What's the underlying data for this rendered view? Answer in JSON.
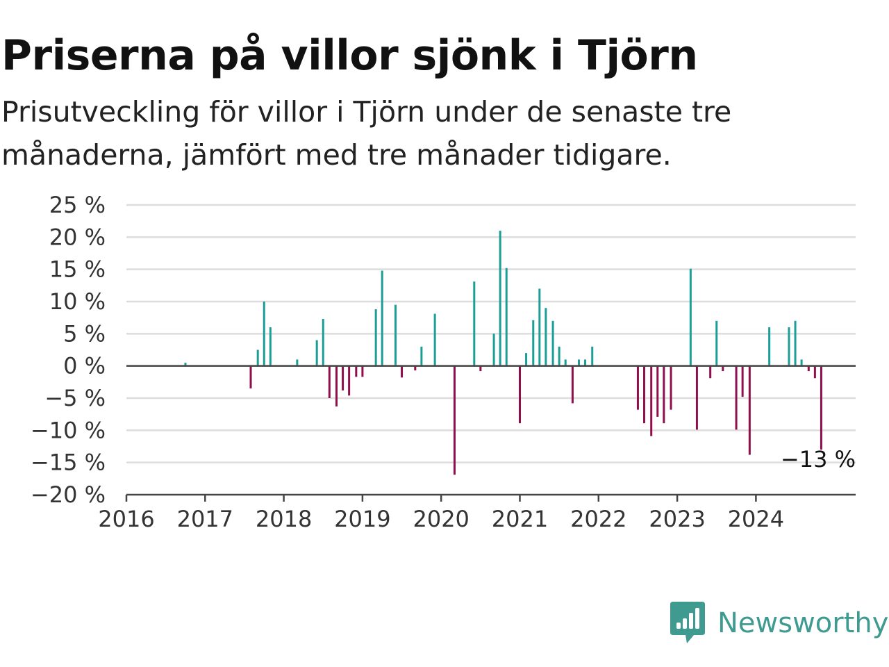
{
  "title": "Priserna på villor sjönk i Tjörn",
  "subtitle": "Prisutveckling för villor i Tjörn under de senaste tre månaderna, jämfört med tre månader tidigare.",
  "brand": {
    "name": "Newsworthy",
    "icon": "newsworthy-logo-icon",
    "color": "#3f9a8f"
  },
  "colors": {
    "positive": "#1a9e96",
    "negative": "#8e0f4b",
    "grid": "#dddddd",
    "zero_line": "#444444"
  },
  "chart_data": {
    "type": "bar",
    "unit": "%",
    "yticks": [
      "25 %",
      "20 %",
      "15 %",
      "10 %",
      "5 %",
      "0 %",
      "−5 %",
      "−10 %",
      "−15 %",
      "−20 %"
    ],
    "ytick_values": [
      25,
      20,
      15,
      10,
      5,
      0,
      -5,
      -10,
      -15,
      -20
    ],
    "xticks": [
      "2016",
      "2017",
      "2018",
      "2019",
      "2020",
      "2021",
      "2022",
      "2023",
      "2024"
    ],
    "xtick_values": [
      2016,
      2017,
      2018,
      2019,
      2020,
      2021,
      2022,
      2023,
      2024
    ],
    "ylim": [
      -20,
      25
    ],
    "xlim": [
      2016,
      2025.3
    ],
    "grid": true,
    "last_value_label": "−13 %",
    "points": [
      {
        "x": 2016.75,
        "y": 0.5
      },
      {
        "x": 2017.58,
        "y": -3.5
      },
      {
        "x": 2017.67,
        "y": 2.5
      },
      {
        "x": 2017.75,
        "y": 10
      },
      {
        "x": 2017.83,
        "y": 6
      },
      {
        "x": 2018.17,
        "y": 1
      },
      {
        "x": 2018.42,
        "y": 4
      },
      {
        "x": 2018.5,
        "y": 7.3
      },
      {
        "x": 2018.58,
        "y": -5
      },
      {
        "x": 2018.67,
        "y": -6.3
      },
      {
        "x": 2018.75,
        "y": -3.8
      },
      {
        "x": 2018.83,
        "y": -4.6
      },
      {
        "x": 2018.92,
        "y": -1.7
      },
      {
        "x": 2019.0,
        "y": -1.7
      },
      {
        "x": 2019.17,
        "y": 8.8
      },
      {
        "x": 2019.25,
        "y": 14.8
      },
      {
        "x": 2019.42,
        "y": 9.5
      },
      {
        "x": 2019.5,
        "y": -1.8
      },
      {
        "x": 2019.67,
        "y": -0.7
      },
      {
        "x": 2019.75,
        "y": 3
      },
      {
        "x": 2019.92,
        "y": 8.1
      },
      {
        "x": 2020.17,
        "y": -16.9
      },
      {
        "x": 2020.42,
        "y": 13.1
      },
      {
        "x": 2020.5,
        "y": -0.8
      },
      {
        "x": 2020.67,
        "y": 5
      },
      {
        "x": 2020.75,
        "y": 21
      },
      {
        "x": 2020.83,
        "y": 15.2
      },
      {
        "x": 2021.0,
        "y": -8.9
      },
      {
        "x": 2021.08,
        "y": 2
      },
      {
        "x": 2021.17,
        "y": 7.1
      },
      {
        "x": 2021.25,
        "y": 12
      },
      {
        "x": 2021.33,
        "y": 9
      },
      {
        "x": 2021.42,
        "y": 7
      },
      {
        "x": 2021.5,
        "y": 3
      },
      {
        "x": 2021.58,
        "y": 1
      },
      {
        "x": 2021.67,
        "y": -5.8
      },
      {
        "x": 2021.75,
        "y": 1
      },
      {
        "x": 2021.83,
        "y": 1
      },
      {
        "x": 2021.92,
        "y": 3
      },
      {
        "x": 2022.5,
        "y": -6.8
      },
      {
        "x": 2022.58,
        "y": -8.9
      },
      {
        "x": 2022.67,
        "y": -10.9
      },
      {
        "x": 2022.75,
        "y": -7.9
      },
      {
        "x": 2022.83,
        "y": -8.9
      },
      {
        "x": 2022.92,
        "y": -6.8
      },
      {
        "x": 2023.17,
        "y": 15.1
      },
      {
        "x": 2023.25,
        "y": -9.9
      },
      {
        "x": 2023.42,
        "y": -1.9
      },
      {
        "x": 2023.5,
        "y": 7
      },
      {
        "x": 2023.58,
        "y": -0.8
      },
      {
        "x": 2023.75,
        "y": -9.9
      },
      {
        "x": 2023.83,
        "y": -4.8
      },
      {
        "x": 2023.92,
        "y": -13.8
      },
      {
        "x": 2024.17,
        "y": 6
      },
      {
        "x": 2024.42,
        "y": 6
      },
      {
        "x": 2024.5,
        "y": 7
      },
      {
        "x": 2024.58,
        "y": 1
      },
      {
        "x": 2024.67,
        "y": -0.8
      },
      {
        "x": 2024.75,
        "y": -1.9
      },
      {
        "x": 2024.83,
        "y": -13
      }
    ]
  }
}
